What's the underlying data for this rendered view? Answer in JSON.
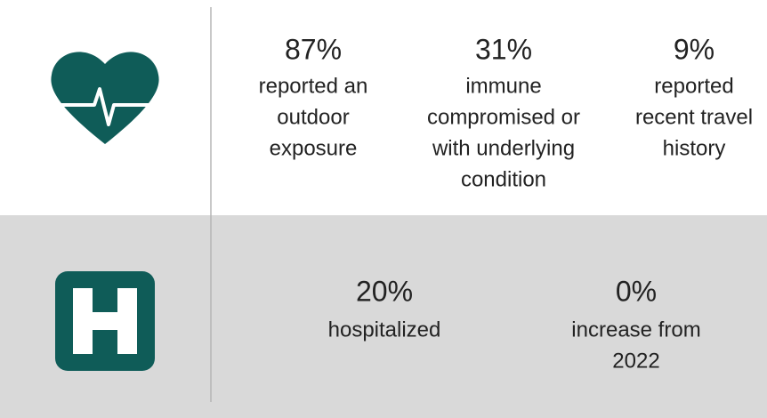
{
  "sections": [
    {
      "stats": [
        {
          "value": "87%",
          "lines": [
            "reported an",
            "outdoor",
            "exposure"
          ]
        },
        {
          "value": "31%",
          "lines": [
            "immune",
            "compromised or",
            "with underlying",
            "condition"
          ]
        },
        {
          "value": "9%",
          "lines": [
            "reported",
            "recent travel",
            "history"
          ]
        }
      ]
    },
    {
      "stats": [
        {
          "value": "20%",
          "lines": [
            "hospitalized"
          ]
        },
        {
          "value": "0%",
          "lines": [
            "increase from",
            "2022"
          ]
        }
      ]
    }
  ]
}
